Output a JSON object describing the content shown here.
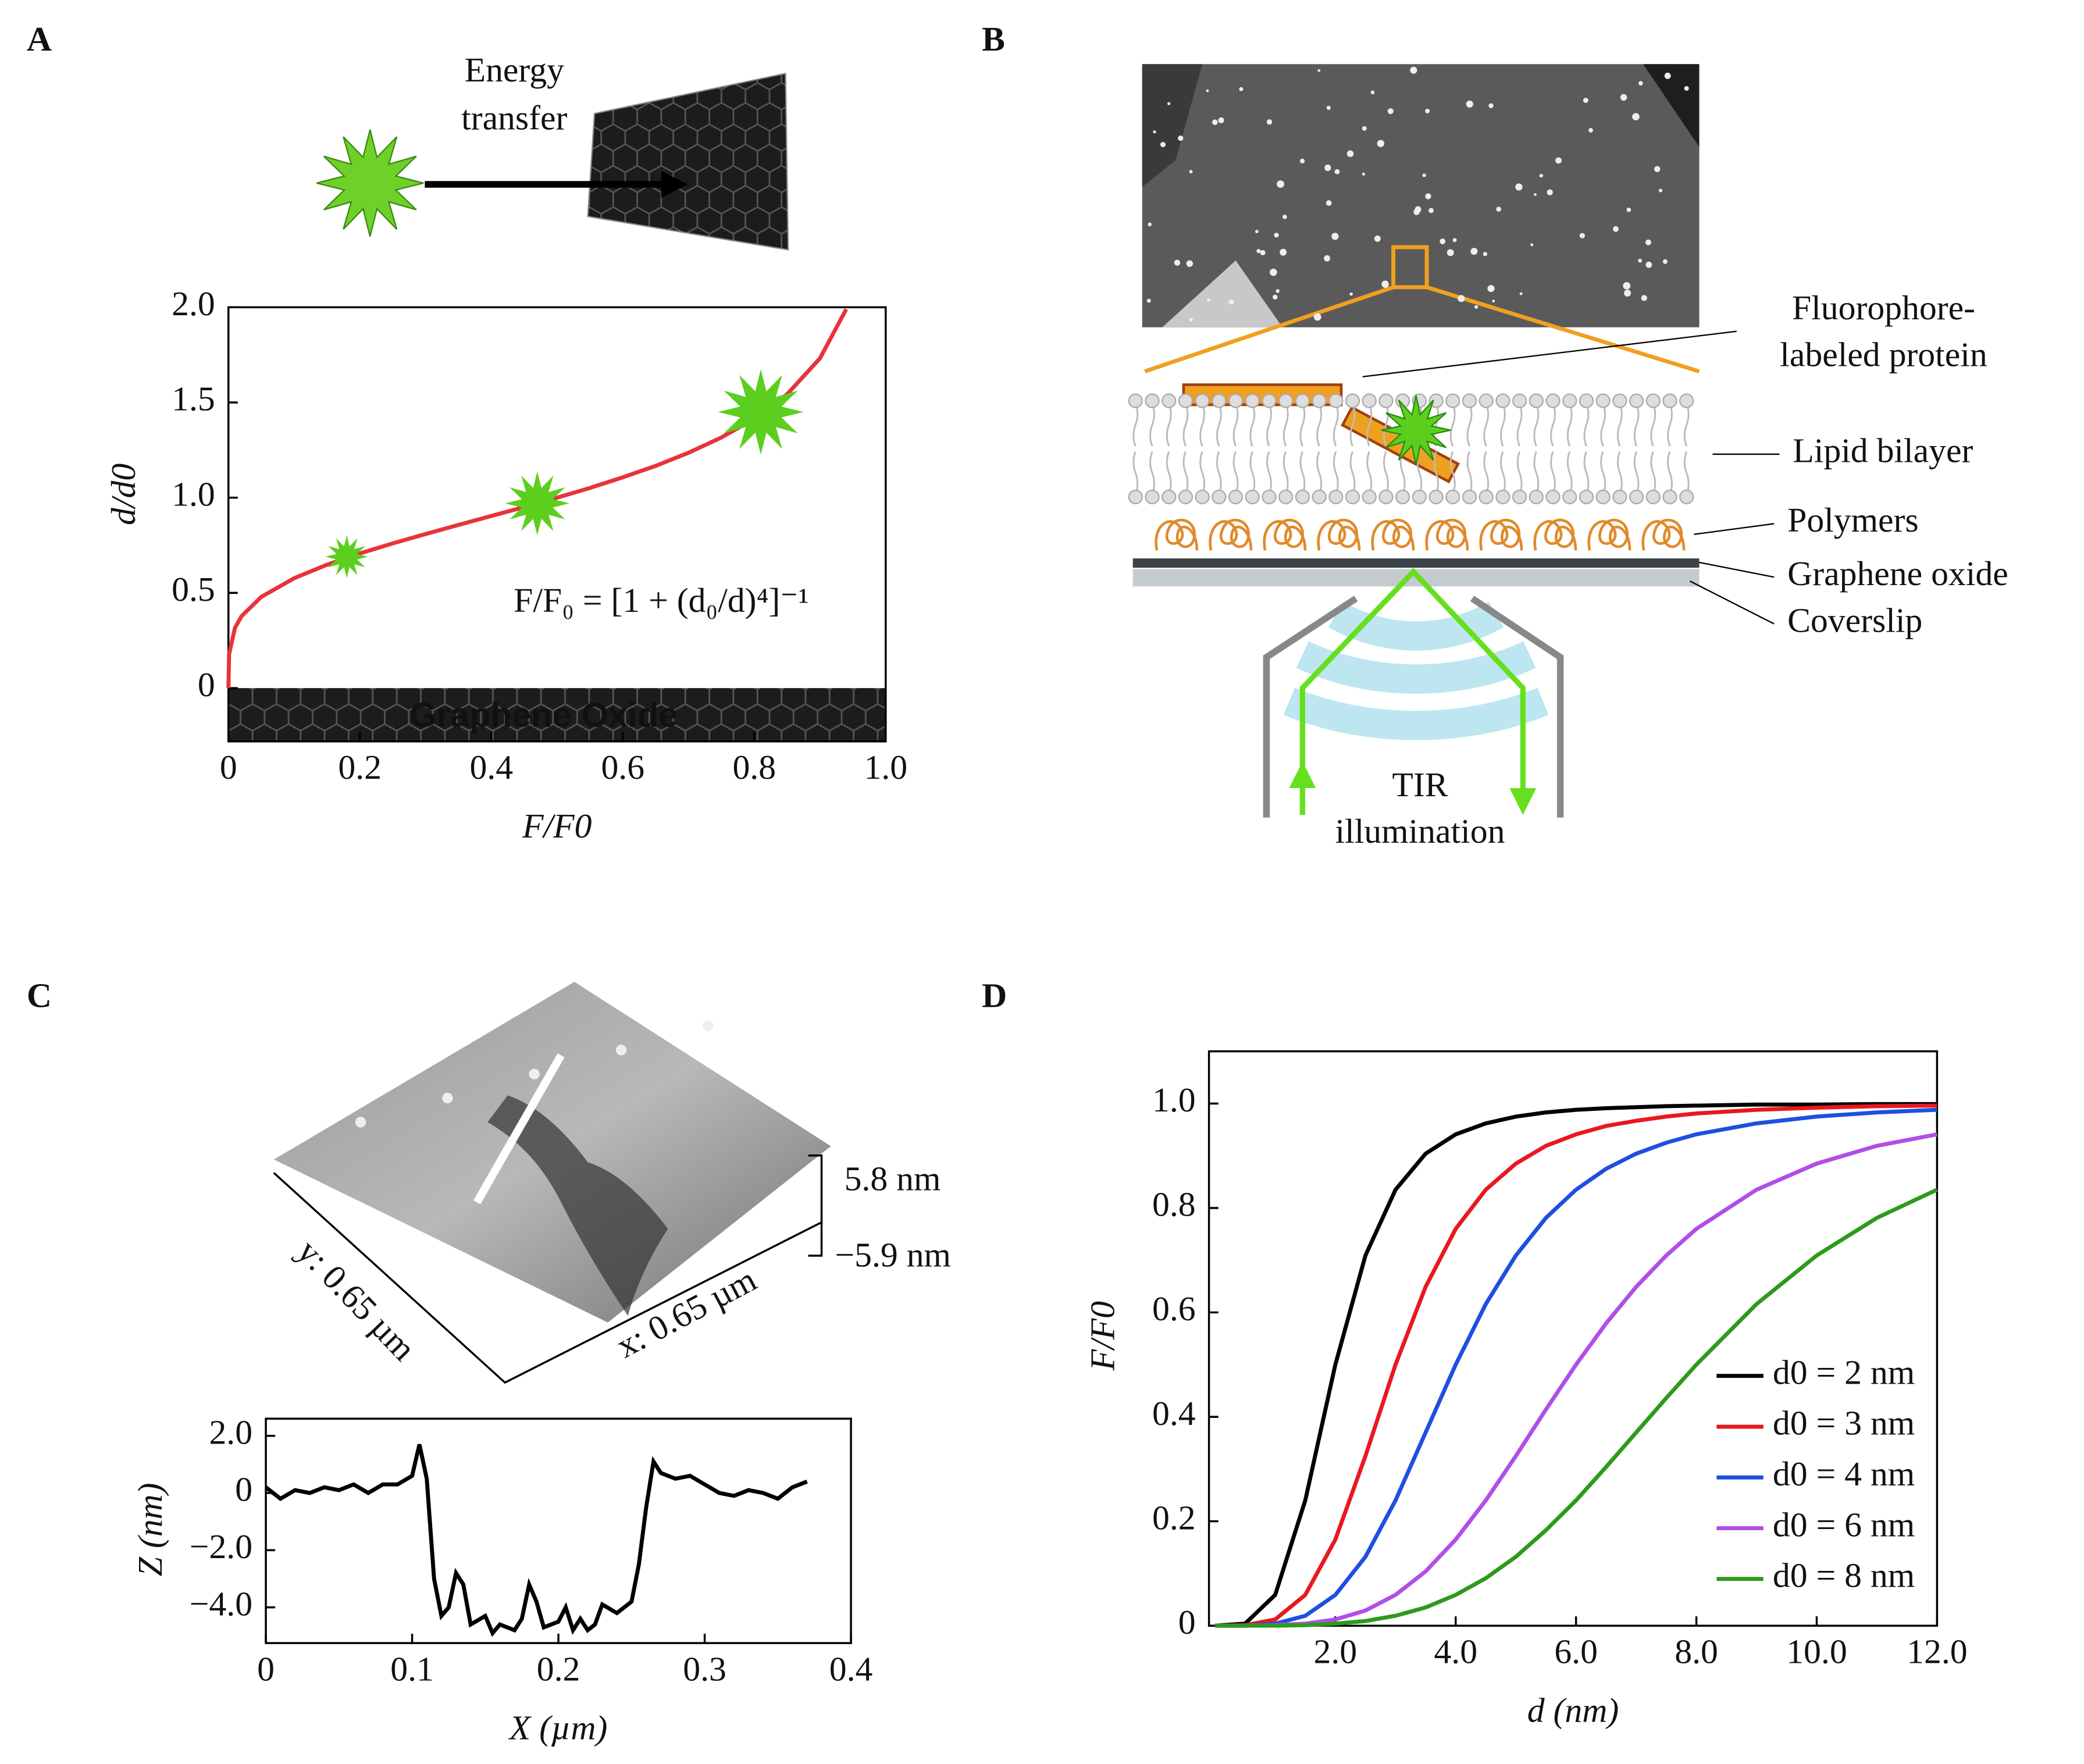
{
  "panel_labels": [
    "A",
    "B",
    "C",
    "D"
  ],
  "schematic_a": {
    "label_lines": [
      "Energy",
      "transfer"
    ]
  },
  "schematic_b": {
    "protein_label_lines": [
      "Fluorophore-",
      "labeled protein"
    ],
    "layer_labels": [
      "Lipid bilayer",
      "Polymers",
      "Graphene oxide",
      "Coverslip"
    ],
    "illumination_lines": [
      "TIR",
      "illumination"
    ]
  },
  "afm_c": {
    "z_max": "5.8 nm",
    "z_min": "−5.9 nm",
    "y_size": "y: 0.65 µm",
    "x_size": "x: 0.65 µm"
  },
  "chart_data": [
    {
      "type": "line",
      "xlabel": "F/F0",
      "ylabel": "d/d0",
      "color": "#e8333a",
      "x": [
        0,
        0.001,
        0.01,
        0.02,
        0.05,
        0.1,
        0.15,
        0.2,
        0.25,
        0.3,
        0.35,
        0.4,
        0.45,
        0.5,
        0.55,
        0.6,
        0.65,
        0.7,
        0.75,
        0.8,
        0.85,
        0.9,
        0.94
      ],
      "values": [
        0,
        0.178,
        0.317,
        0.378,
        0.479,
        0.577,
        0.648,
        0.707,
        0.76,
        0.809,
        0.857,
        0.904,
        0.951,
        1,
        1.051,
        1.107,
        1.167,
        1.236,
        1.316,
        1.414,
        1.543,
        1.732,
        1.99
      ],
      "markers": {
        "x": [
          0.18,
          0.47,
          0.81
        ],
        "values": [
          0.69,
          0.97,
          1.45
        ],
        "color": "#5ccf1e"
      },
      "equation": "F/F₀ = [1 + (d₀/d)⁴]⁻¹",
      "band_label": "Graphene Oxide",
      "xlim": [
        0,
        1
      ],
      "ylim": [
        -0.28,
        2
      ],
      "xticks": [
        0,
        0.2,
        0.4,
        0.6,
        0.8,
        {
          "value": 1,
          "label": "1.0"
        }
      ],
      "yticks": [
        0,
        0.5,
        {
          "value": 1,
          "label": "1.0"
        },
        1.5,
        {
          "value": 2,
          "label": "2.0"
        }
      ]
    },
    {
      "type": "line",
      "xlabel": "X (µm)",
      "ylabel": "Z (nm)",
      "color": "#000000",
      "x": [
        0,
        0.01,
        0.02,
        0.03,
        0.04,
        0.05,
        0.06,
        0.07,
        0.08,
        0.09,
        0.1,
        0.105,
        0.11,
        0.115,
        0.12,
        0.125,
        0.13,
        0.135,
        0.14,
        0.15,
        0.155,
        0.16,
        0.17,
        0.175,
        0.18,
        0.185,
        0.19,
        0.2,
        0.205,
        0.21,
        0.215,
        0.22,
        0.225,
        0.23,
        0.24,
        0.25,
        0.255,
        0.26,
        0.265,
        0.27,
        0.28,
        0.29,
        0.3,
        0.31,
        0.32,
        0.33,
        0.34,
        0.35,
        0.36,
        0.37
      ],
      "values": [
        0.2,
        -0.2,
        0.1,
        0,
        0.2,
        0.1,
        0.3,
        0,
        0.3,
        0.3,
        0.6,
        1.7,
        0.5,
        -3,
        -4.3,
        -4,
        -2.8,
        -3.2,
        -4.6,
        -4.3,
        -4.9,
        -4.6,
        -4.8,
        -4.4,
        -3.2,
        -3.8,
        -4.7,
        -4.5,
        -4,
        -4.8,
        -4.4,
        -4.8,
        -4.6,
        -3.9,
        -4.2,
        -3.8,
        -2.5,
        -0.5,
        1.1,
        0.7,
        0.5,
        0.6,
        0.3,
        0,
        -0.1,
        0.1,
        0,
        -0.2,
        0.2,
        0.4
      ],
      "xlim": [
        0,
        0.4
      ],
      "ylim": [
        -5.25,
        2.6
      ],
      "xticks": [
        0,
        0.1,
        0.2,
        0.3,
        0.4
      ],
      "yticks": [
        {
          "value": 2,
          "label": "2.0"
        },
        0,
        {
          "value": -2,
          "label": "−2.0"
        },
        {
          "value": -4,
          "label": "−4.0"
        }
      ]
    },
    {
      "type": "line",
      "xlabel": "d (nm)",
      "ylabel": "F/F0",
      "legend": "lower right",
      "x": [
        0,
        0.5,
        1,
        1.5,
        2,
        2.5,
        3,
        3.5,
        4,
        4.5,
        5,
        5.5,
        6,
        6.5,
        7,
        7.5,
        8,
        9,
        10,
        11,
        12
      ],
      "series": [
        {
          "name": "d0 = 2 nm",
          "color": "#000000",
          "values": [
            0,
            0.004,
            0.059,
            0.24,
            0.5,
            0.709,
            0.835,
            0.904,
            0.941,
            0.962,
            0.975,
            0.983,
            0.988,
            0.991,
            0.993,
            0.995,
            0.996,
            0.998,
            0.998,
            0.999,
            0.999
          ]
        },
        {
          "name": "d0 = 3 nm",
          "color": "#e8191f",
          "values": [
            0,
            0.001,
            0.012,
            0.059,
            0.165,
            0.325,
            0.5,
            0.649,
            0.76,
            0.835,
            0.885,
            0.919,
            0.941,
            0.957,
            0.967,
            0.975,
            0.981,
            0.988,
            0.992,
            0.995,
            0.996
          ]
        },
        {
          "name": "d0 = 4 nm",
          "color": "#1f4fe0",
          "values": [
            0,
            0,
            0.004,
            0.019,
            0.059,
            0.132,
            0.24,
            0.37,
            0.5,
            0.616,
            0.709,
            0.781,
            0.835,
            0.875,
            0.904,
            0.925,
            0.941,
            0.962,
            0.975,
            0.983,
            0.988
          ]
        },
        {
          "name": "d0 = 6 nm",
          "color": "#b04ee8",
          "values": [
            0,
            0,
            0.001,
            0.004,
            0.012,
            0.029,
            0.059,
            0.104,
            0.165,
            0.24,
            0.325,
            0.414,
            0.5,
            0.579,
            0.649,
            0.709,
            0.76,
            0.835,
            0.885,
            0.919,
            0.941
          ]
        },
        {
          "name": "d0 = 8 nm",
          "color": "#2e9a1c",
          "values": [
            0,
            0,
            0,
            0.001,
            0.004,
            0.009,
            0.019,
            0.035,
            0.059,
            0.091,
            0.132,
            0.183,
            0.24,
            0.304,
            0.37,
            0.436,
            0.5,
            0.616,
            0.709,
            0.781,
            0.835
          ]
        }
      ],
      "xlim": [
        -0.1,
        12
      ],
      "ylim": [
        0,
        1.1
      ],
      "xticks": [
        {
          "value": 2,
          "label": "2.0"
        },
        {
          "value": 4,
          "label": "4.0"
        },
        {
          "value": 6,
          "label": "6.0"
        },
        {
          "value": 8,
          "label": "8.0"
        },
        {
          "value": 10,
          "label": "10.0"
        },
        {
          "value": 12,
          "label": "12.0"
        }
      ],
      "yticks": [
        0,
        0.2,
        0.4,
        0.6,
        0.8,
        {
          "value": 1,
          "label": "1.0"
        }
      ]
    }
  ]
}
